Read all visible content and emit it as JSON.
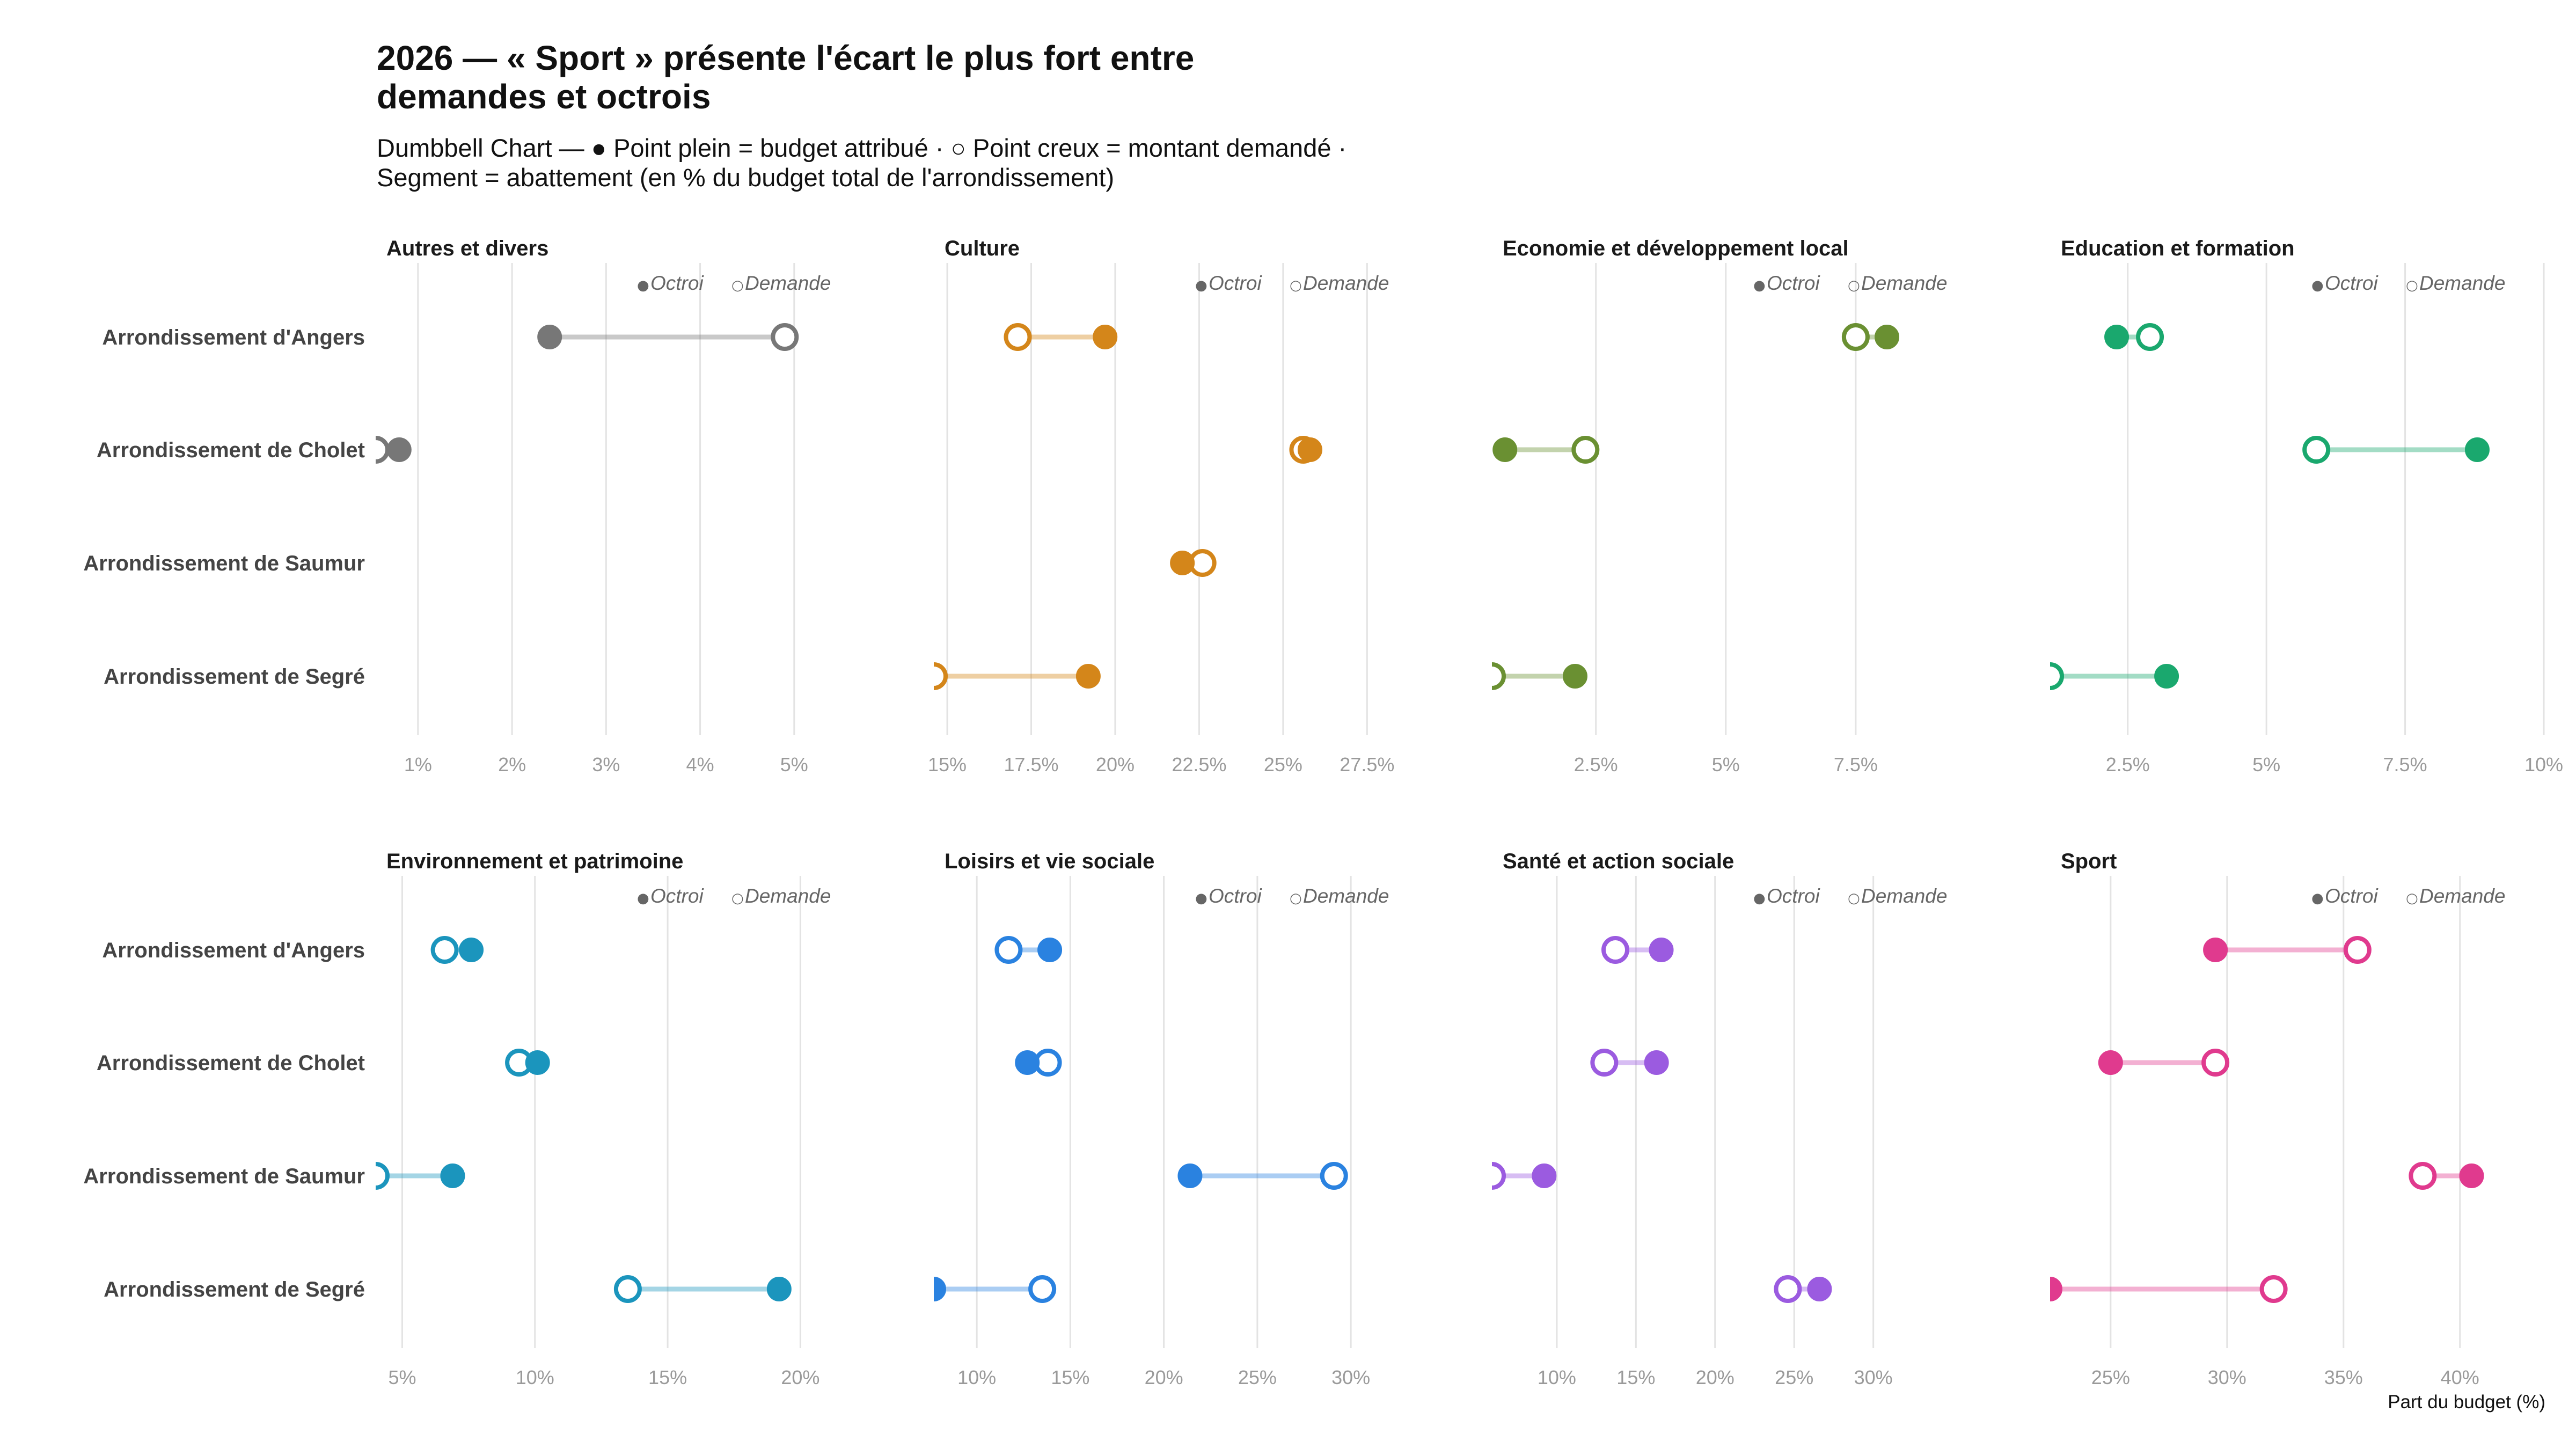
{
  "title": "2026 — « Sport » présente l'écart le plus fort entre demandes et octrois",
  "title_lines": [
    "2026 — « Sport » présente l'écart le plus fort entre",
    "demandes et octrois"
  ],
  "subtitle_lines": [
    "Dumbbell Chart — ● Point plein = budget attribué · ○ Point creux = montant demandé ·",
    "Segment = abattement (en % du budget total de l'arrondissement)"
  ],
  "x_axis_caption": "Part du budget (%)",
  "legend": {
    "filled_symbol": "●",
    "filled_label": "Octroi",
    "hollow_symbol": "○",
    "hollow_label": "Demande"
  },
  "rows": [
    "Arrondissement d'Angers",
    "Arrondissement de Cholet",
    "Arrondissement de Saumur",
    "Arrondissement de Segré"
  ],
  "colors": {
    "Autres et divers": "#777777",
    "Culture": "#d4861a",
    "Economie et développement local": "#6a9032",
    "Education et formation": "#1aa86e",
    "Environnement et patrimoine": "#1b95bd",
    "Loisirs et vie sociale": "#2a82e0",
    "Santé et action sociale": "#9b5be0",
    "Sport": "#e03a8e"
  },
  "chart_data": {
    "type": "dumbbell",
    "title": "2026 — « Sport » présente l'écart le plus fort entre demandes et octrois",
    "xlabel": "Part du budget (%)",
    "ylabel": "",
    "legend_position": "top-right of each panel",
    "grid": true,
    "categories": [
      "Arrondissement d'Angers",
      "Arrondissement de Cholet",
      "Arrondissement de Saumur",
      "Arrondissement de Segré"
    ],
    "panels": [
      {
        "name": "Autres et divers",
        "xlim": [
          0.55,
          5.8
        ],
        "ticks": [
          1,
          2,
          3,
          4,
          5
        ],
        "tick_labels": [
          "1%",
          "2%",
          "3%",
          "4%",
          "5%"
        ],
        "octroi": [
          2.4,
          0.8,
          null,
          null
        ],
        "demande": [
          4.9,
          0.55,
          null,
          null
        ]
      },
      {
        "name": "Culture",
        "xlim": [
          14.6,
          29.3
        ],
        "ticks": [
          15,
          17.5,
          20,
          22.5,
          25,
          27.5
        ],
        "tick_labels": [
          "15%",
          "17.5%",
          "20%",
          "22.5%",
          "25%",
          "27.5%"
        ],
        "octroi": [
          19.7,
          25.8,
          22.0,
          19.2
        ],
        "demande": [
          17.1,
          25.6,
          22.6,
          14.6
        ]
      },
      {
        "name": "Economie et développement local",
        "xlim": [
          0.5,
          10.0
        ],
        "ticks": [
          2.5,
          5,
          7.5
        ],
        "tick_labels": [
          "2.5%",
          "5%",
          "7.5%"
        ],
        "octroi": [
          8.1,
          0.75,
          null,
          2.1
        ],
        "demande": [
          7.5,
          2.3,
          null,
          0.5
        ]
      },
      {
        "name": "Education et formation",
        "xlim": [
          1.1,
          10.0
        ],
        "ticks": [
          2.5,
          5,
          7.5,
          10
        ],
        "tick_labels": [
          "2.5%",
          "5%",
          "7.5%",
          "10%"
        ],
        "octroi": [
          2.3,
          8.8,
          null,
          3.2
        ],
        "demande": [
          2.9,
          5.9,
          null,
          1.1
        ]
      },
      {
        "name": "Environnement et patrimoine",
        "xlim": [
          4.0,
          22.6
        ],
        "ticks": [
          5,
          10,
          15,
          20
        ],
        "tick_labels": [
          "5%",
          "10%",
          "15%",
          "20%"
        ],
        "octroi": [
          7.6,
          10.1,
          6.9,
          19.2
        ],
        "demande": [
          6.6,
          9.4,
          4.0,
          13.5
        ]
      },
      {
        "name": "Loisirs et vie sociale",
        "xlim": [
          7.7,
          34.1
        ],
        "ticks": [
          10,
          15,
          20,
          25,
          30
        ],
        "tick_labels": [
          "10%",
          "15%",
          "20%",
          "25%",
          "30%"
        ],
        "octroi": [
          13.9,
          12.7,
          21.4,
          7.7
        ],
        "demande": [
          11.7,
          13.8,
          29.1,
          13.5
        ]
      },
      {
        "name": "Santé et action sociale",
        "xlim": [
          5.9,
          37.1
        ],
        "ticks": [
          10,
          15,
          20,
          25,
          30
        ],
        "tick_labels": [
          "10%",
          "15%",
          "20%",
          "25%",
          "30%"
        ],
        "octroi": [
          16.6,
          16.3,
          9.2,
          26.6
        ],
        "demande": [
          13.7,
          13.0,
          5.9,
          24.6
        ]
      },
      {
        "name": "Sport",
        "xlim": [
          22.4,
          43.6
        ],
        "ticks": [
          25,
          30,
          35,
          40
        ],
        "tick_labels": [
          "25%",
          "30%",
          "35%",
          "40%"
        ],
        "octroi": [
          29.5,
          25.0,
          40.5,
          22.4
        ],
        "demande": [
          35.6,
          29.5,
          38.4,
          32.0
        ]
      }
    ]
  }
}
